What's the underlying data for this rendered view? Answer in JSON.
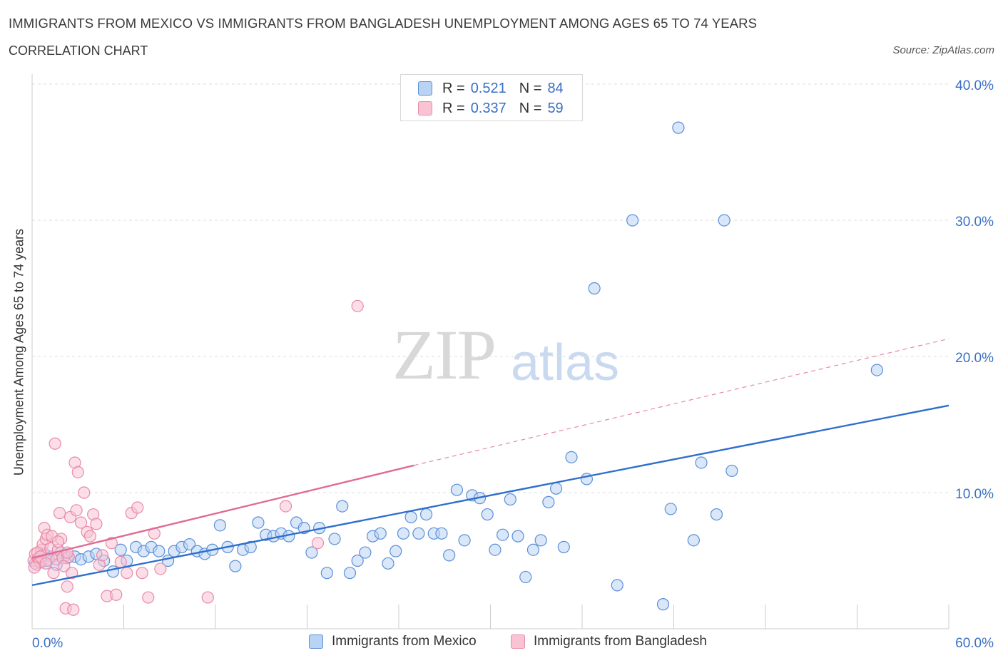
{
  "title": "IMMIGRANTS FROM MEXICO VS IMMIGRANTS FROM BANGLADESH UNEMPLOYMENT AMONG AGES 65 TO 74 YEARS",
  "subtitle": "CORRELATION CHART",
  "source": "Source: ZipAtlas.com",
  "watermark": {
    "zip": "ZIP",
    "atlas": "atlas"
  },
  "legend_top": [
    {
      "r_label": "R =",
      "r_value": "0.521",
      "n_label": "N =",
      "n_value": "84"
    },
    {
      "r_label": "R =",
      "r_value": "0.337",
      "n_label": "N =",
      "n_value": "59"
    }
  ],
  "colors": {
    "mexico_fill": "#b9d3f4",
    "mexico_stroke": "#5a8fd8",
    "mexico_line": "#2f6fcc",
    "bangladesh_fill": "#f8c3d3",
    "bangladesh_stroke": "#e98aa8",
    "bangladesh_line": "#e06b94",
    "axis_label": "#3a6fc4",
    "grid": "#dddddd"
  },
  "chart_data": {
    "type": "scatter",
    "title": "IMMIGRANTS FROM MEXICO VS IMMIGRANTS FROM BANGLADESH UNEMPLOYMENT AMONG AGES 65 TO 74 YEARS",
    "xlabel": "",
    "ylabel": "Unemployment Among Ages 65 to 74 years",
    "xlim": [
      0,
      60
    ],
    "ylim": [
      0,
      40
    ],
    "x_tick_labels": [
      "0.0%",
      "60.0%"
    ],
    "y_ticks": [
      10,
      20,
      30,
      40
    ],
    "y_tick_labels": [
      "10.0%",
      "20.0%",
      "30.0%",
      "40.0%"
    ],
    "grid": true,
    "legend_position": "top-center",
    "series": [
      {
        "name": "Immigrants from Mexico",
        "r": 0.521,
        "n": 84,
        "trend": {
          "x": [
            0,
            60
          ],
          "y": [
            3.2,
            16.4
          ],
          "extrapolated": false
        },
        "points": [
          [
            0.2,
            4.8
          ],
          [
            0.4,
            5.2
          ],
          [
            0.6,
            4.9
          ],
          [
            0.8,
            5.5
          ],
          [
            1,
            5
          ],
          [
            1.3,
            5.3
          ],
          [
            1.6,
            4.7
          ],
          [
            1.9,
            5.6
          ],
          [
            2.3,
            5.2
          ],
          [
            2.8,
            5.3
          ],
          [
            3.2,
            5.1
          ],
          [
            3.7,
            5.3
          ],
          [
            4.2,
            5.5
          ],
          [
            4.7,
            5
          ],
          [
            5.3,
            4.2
          ],
          [
            5.8,
            5.8
          ],
          [
            6.2,
            5
          ],
          [
            6.8,
            6
          ],
          [
            7.3,
            5.7
          ],
          [
            7.8,
            6
          ],
          [
            8.3,
            5.7
          ],
          [
            8.9,
            5
          ],
          [
            9.3,
            5.7
          ],
          [
            9.8,
            6
          ],
          [
            10.3,
            6.2
          ],
          [
            10.8,
            5.7
          ],
          [
            11.3,
            5.5
          ],
          [
            11.8,
            5.8
          ],
          [
            12.3,
            7.6
          ],
          [
            12.8,
            6
          ],
          [
            13.3,
            4.6
          ],
          [
            13.8,
            5.8
          ],
          [
            14.3,
            6
          ],
          [
            14.8,
            7.8
          ],
          [
            15.3,
            6.9
          ],
          [
            15.8,
            6.8
          ],
          [
            16.3,
            7
          ],
          [
            16.8,
            6.8
          ],
          [
            17.3,
            7.8
          ],
          [
            17.8,
            7.4
          ],
          [
            18.3,
            5.6
          ],
          [
            18.8,
            7.4
          ],
          [
            19.3,
            4.1
          ],
          [
            19.8,
            6.6
          ],
          [
            20.3,
            9
          ],
          [
            20.8,
            4.1
          ],
          [
            21.3,
            5
          ],
          [
            21.8,
            5.6
          ],
          [
            22.3,
            6.8
          ],
          [
            22.8,
            7
          ],
          [
            23.3,
            4.8
          ],
          [
            23.8,
            5.7
          ],
          [
            24.3,
            7
          ],
          [
            24.8,
            8.2
          ],
          [
            25.3,
            7
          ],
          [
            25.8,
            8.4
          ],
          [
            26.3,
            7
          ],
          [
            26.8,
            7
          ],
          [
            27.3,
            5.4
          ],
          [
            27.8,
            10.2
          ],
          [
            28.3,
            6.5
          ],
          [
            28.8,
            9.8
          ],
          [
            29.3,
            9.6
          ],
          [
            29.8,
            8.4
          ],
          [
            30.3,
            5.8
          ],
          [
            30.8,
            6.9
          ],
          [
            31.3,
            9.5
          ],
          [
            31.8,
            6.8
          ],
          [
            32.3,
            3.8
          ],
          [
            32.8,
            5.8
          ],
          [
            33.3,
            6.5
          ],
          [
            33.8,
            9.3
          ],
          [
            34.3,
            10.3
          ],
          [
            34.8,
            6
          ],
          [
            35.3,
            12.6
          ],
          [
            36.3,
            11
          ],
          [
            36.8,
            25
          ],
          [
            38.3,
            3.2
          ],
          [
            39.3,
            30
          ],
          [
            41.3,
            1.8
          ],
          [
            41.8,
            8.8
          ],
          [
            42.3,
            36.8
          ],
          [
            43.3,
            6.5
          ],
          [
            43.8,
            12.2
          ],
          [
            44.8,
            8.4
          ],
          [
            45.3,
            30
          ],
          [
            45.8,
            11.6
          ],
          [
            55.3,
            19
          ]
        ]
      },
      {
        "name": "Immigrants from Bangladesh",
        "r": 0.337,
        "n": 59,
        "trend": {
          "x": [
            0,
            25
          ],
          "y": [
            5.2,
            12
          ],
          "dashed_to": [
            60,
            21.3
          ]
        },
        "points": [
          [
            0.1,
            5
          ],
          [
            0.2,
            5.5
          ],
          [
            0.3,
            4.7
          ],
          [
            0.4,
            5.2
          ],
          [
            0.5,
            4.9
          ],
          [
            0.6,
            5.8
          ],
          [
            0.7,
            6.2
          ],
          [
            0.8,
            7.4
          ],
          [
            0.9,
            6.6
          ],
          [
            1,
            6.9
          ],
          [
            1.1,
            5.1
          ],
          [
            1.2,
            5.9
          ],
          [
            1.3,
            6.8
          ],
          [
            1.4,
            4.1
          ],
          [
            1.5,
            13.6
          ],
          [
            1.6,
            5.1
          ],
          [
            1.7,
            5.8
          ],
          [
            1.8,
            8.5
          ],
          [
            1.9,
            6.6
          ],
          [
            2,
            5.2
          ],
          [
            2.1,
            4.6
          ],
          [
            2.2,
            1.5
          ],
          [
            2.3,
            3.1
          ],
          [
            2.4,
            5.3
          ],
          [
            2.5,
            8.2
          ],
          [
            2.6,
            4.1
          ],
          [
            2.7,
            1.4
          ],
          [
            2.8,
            12.2
          ],
          [
            2.9,
            8.7
          ],
          [
            3,
            11.5
          ],
          [
            3.2,
            7.8
          ],
          [
            3.4,
            10
          ],
          [
            3.6,
            7.1
          ],
          [
            3.8,
            6.8
          ],
          [
            4,
            8.4
          ],
          [
            4.2,
            7.7
          ],
          [
            4.4,
            4.7
          ],
          [
            4.6,
            5.4
          ],
          [
            4.9,
            2.4
          ],
          [
            5.2,
            6.3
          ],
          [
            5.5,
            2.5
          ],
          [
            5.8,
            4.9
          ],
          [
            6.2,
            4.1
          ],
          [
            6.5,
            8.5
          ],
          [
            6.9,
            8.9
          ],
          [
            7.2,
            4.1
          ],
          [
            7.6,
            2.3
          ],
          [
            8,
            7
          ],
          [
            8.4,
            4.4
          ],
          [
            11.5,
            2.3
          ],
          [
            16.6,
            9
          ],
          [
            18.7,
            6.3
          ],
          [
            21.3,
            23.7
          ],
          [
            0.15,
            4.5
          ],
          [
            0.35,
            5.6
          ],
          [
            0.55,
            5.3
          ],
          [
            0.9,
            4.8
          ],
          [
            1.7,
            6.4
          ],
          [
            2.3,
            5.6
          ]
        ]
      }
    ]
  },
  "legend_bottom": [
    {
      "label": "Immigrants from Mexico"
    },
    {
      "label": "Immigrants from Bangladesh"
    }
  ]
}
